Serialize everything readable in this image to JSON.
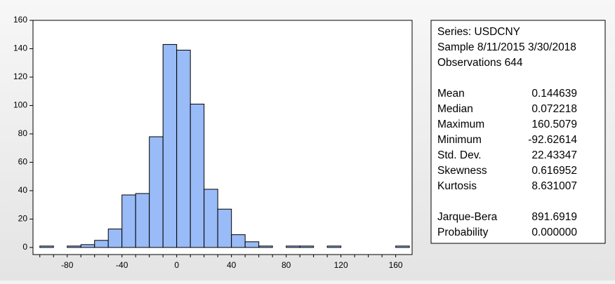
{
  "chart_data": {
    "type": "histogram",
    "bins": [
      -100,
      -90,
      -80,
      -70,
      -60,
      -50,
      -40,
      -30,
      -20,
      -10,
      0,
      10,
      20,
      30,
      40,
      50,
      60,
      70,
      80,
      90,
      100,
      110,
      120,
      130,
      140,
      150,
      160,
      170
    ],
    "values": [
      1,
      0,
      1,
      2,
      5,
      13,
      37,
      38,
      78,
      143,
      139,
      101,
      41,
      27,
      9,
      4,
      1,
      0,
      1,
      1,
      0,
      1,
      0,
      0,
      0,
      0,
      1
    ],
    "color": "#99bbf7",
    "xlim": [
      -105,
      172
    ],
    "xticks": [
      -80,
      -40,
      0,
      40,
      80,
      120,
      160
    ],
    "ylim": [
      -5,
      160
    ],
    "yticks": [
      0,
      20,
      40,
      60,
      80,
      100,
      120,
      140,
      160
    ]
  },
  "summary": {
    "header": [
      "Series: USDCNY",
      "Sample 8/11/2015 3/30/2018",
      "Observations 644"
    ],
    "rows": [
      [
        "Mean",
        "0.144639"
      ],
      [
        "Median",
        "0.072218"
      ],
      [
        "Maximum",
        "160.5079"
      ],
      [
        "Minimum",
        "-92.62614"
      ],
      [
        "Std. Dev.",
        "22.43347"
      ],
      [
        "Skewness",
        "0.616952"
      ],
      [
        "Kurtosis",
        "8.631007"
      ]
    ],
    "tests": [
      [
        "Jarque-Bera",
        "891.6919"
      ],
      [
        "Probability",
        "0.000000"
      ]
    ]
  }
}
